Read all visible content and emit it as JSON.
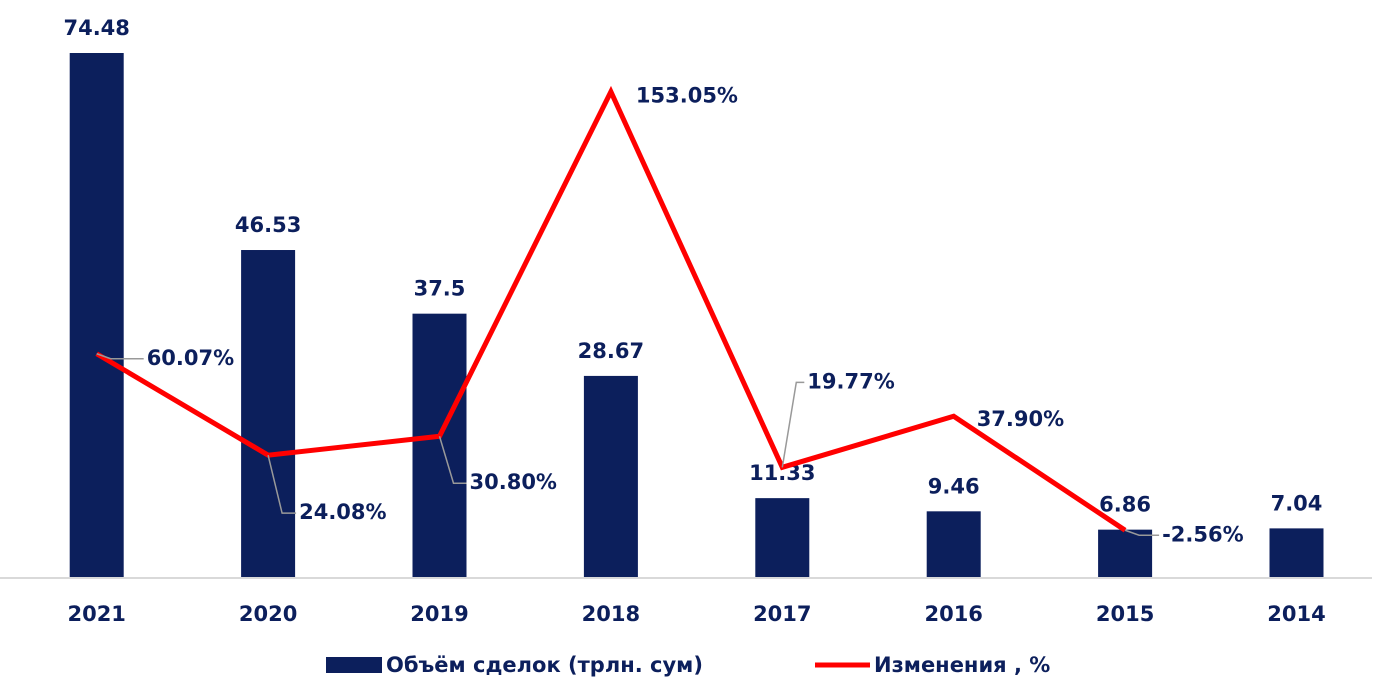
{
  "chart_data": {
    "type": "bar",
    "categories": [
      "2021",
      "2020",
      "2019",
      "2018",
      "2017",
      "2016",
      "2015",
      "2014"
    ],
    "ylim": [
      0,
      82
    ],
    "y2lim": [
      -19.5,
      185.6
    ],
    "series": [
      {
        "name": "Объём сделок (трлн. сум)",
        "type": "bar",
        "color": "#0c1f5c",
        "values": [
          74.48,
          46.53,
          37.5,
          28.67,
          11.33,
          9.46,
          6.86,
          7.04
        ]
      },
      {
        "name": "Изменения , %",
        "type": "line",
        "axis": "y2",
        "color": "#ff0000",
        "values": [
          60.07,
          24.08,
          30.8,
          153.05,
          19.77,
          37.9,
          -2.56,
          null
        ],
        "value_labels": [
          "60.07%",
          "24.08%",
          "30.80%",
          "153.05%",
          "19.77%",
          "37.90%",
          "-2.56%",
          null
        ]
      }
    ]
  }
}
